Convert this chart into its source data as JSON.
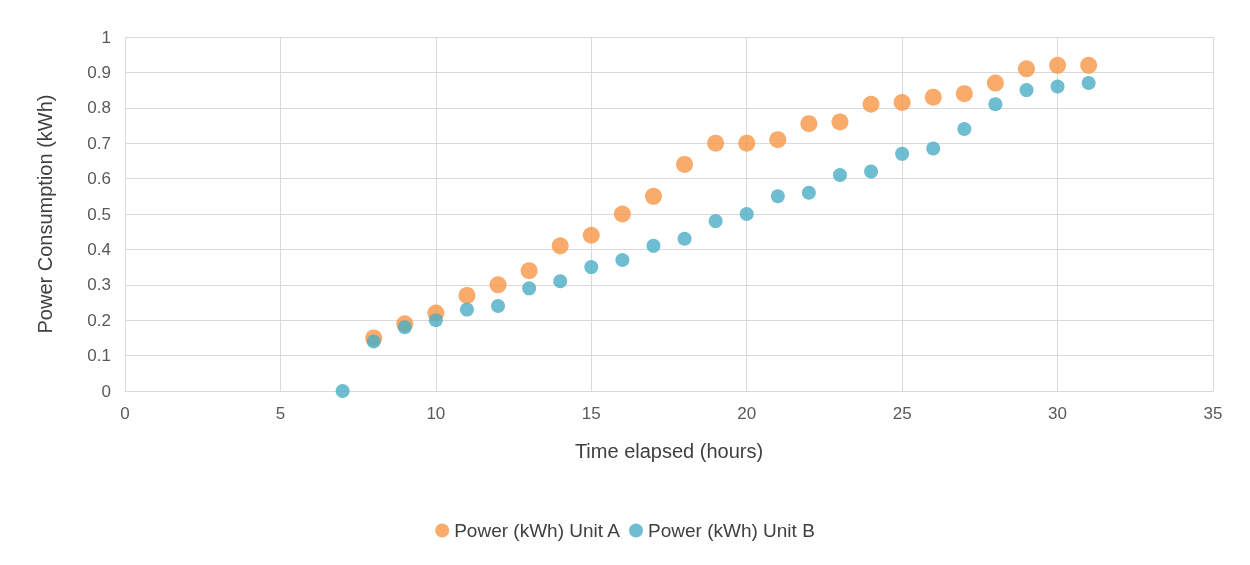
{
  "chart_data": {
    "type": "scatter",
    "xlabel": "Time elapsed (hours)",
    "ylabel": "Power Consumption (kWh)",
    "x": [
      7,
      8,
      9,
      10,
      11,
      12,
      13,
      14,
      15,
      16,
      17,
      18,
      19,
      20,
      21,
      22,
      23,
      24,
      25,
      26,
      27,
      28,
      29,
      30,
      31
    ],
    "series": [
      {
        "name": "Power (kWh) Unit A",
        "color": "#f79646",
        "values": [
          null,
          0.15,
          0.19,
          0.22,
          0.27,
          0.3,
          0.34,
          0.41,
          0.44,
          0.5,
          0.55,
          0.64,
          0.7,
          0.7,
          0.71,
          0.755,
          0.76,
          0.81,
          0.815,
          0.83,
          0.84,
          0.87,
          0.91,
          0.92,
          0.92
        ]
      },
      {
        "name": "Power (kWh) Unit B",
        "color": "#4bacc6",
        "values": [
          0,
          0.14,
          0.18,
          0.2,
          0.23,
          0.24,
          0.29,
          0.31,
          0.35,
          0.37,
          0.41,
          0.43,
          0.48,
          0.5,
          0.55,
          0.56,
          0.61,
          0.62,
          0.67,
          0.685,
          0.74,
          0.81,
          0.85,
          0.86,
          0.87
        ]
      }
    ],
    "xlim": [
      0,
      35
    ],
    "xticks": [
      0,
      5,
      10,
      15,
      20,
      25,
      30,
      35
    ],
    "ylim": [
      0,
      1
    ],
    "yticks": [
      0,
      0.1,
      0.2,
      0.3,
      0.4,
      0.5,
      0.6,
      0.7,
      0.8,
      0.9,
      1
    ],
    "grid": true,
    "legend": "bottom",
    "marker": "circle"
  }
}
